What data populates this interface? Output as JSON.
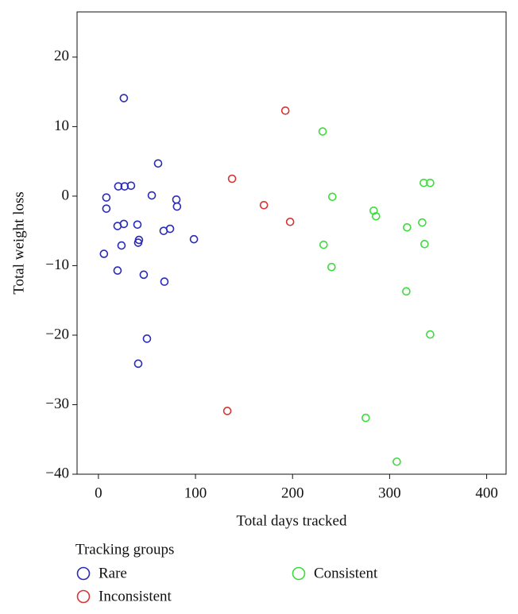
{
  "chart_data": {
    "type": "scatter",
    "x_label": "Total days tracked",
    "y_label": "Total weight loss",
    "legend_title": "Tracking groups",
    "xlim": [
      -22,
      420
    ],
    "ylim": [
      -40,
      26.5
    ],
    "xticks": [
      0,
      100,
      200,
      300,
      400
    ],
    "yticks": [
      {
        "value": -40,
        "label": "−40"
      },
      {
        "value": -30,
        "label": "−30"
      },
      {
        "value": -20,
        "label": "−20"
      },
      {
        "value": -10,
        "label": "−10"
      },
      0,
      10,
      20
    ],
    "series": [
      {
        "name": "Rare",
        "color": "#2b2bb8",
        "x": [
          26.2,
          61.5,
          20.5,
          27,
          33.6,
          55,
          8.2,
          8.2,
          80.3,
          81,
          19.7,
          26.2,
          40.2,
          73.8,
          67.2,
          41.8,
          41,
          98.4,
          23.8,
          5.7,
          19.7,
          46.7,
          68,
          50,
          41
        ],
        "values": [
          14.1,
          4.7,
          1.4,
          1.4,
          1.5,
          0.1,
          -0.2,
          -1.8,
          -0.5,
          -1.5,
          -4.3,
          -4,
          -4.1,
          -4.7,
          -5,
          -6.3,
          -6.7,
          -6.2,
          -7.1,
          -8.3,
          -10.7,
          -11.3,
          -12.3,
          -20.5,
          -24.1
        ]
      },
      {
        "name": "Inconsistent",
        "color": "#d93333",
        "x": [
          192.6,
          137.7,
          170.5,
          197.5,
          132.8
        ],
        "values": [
          12.3,
          2.5,
          -1.3,
          -3.7,
          -30.9
        ]
      },
      {
        "name": "Consistent",
        "color": "#3ddc3d",
        "x": [
          231,
          241,
          283.6,
          286,
          335.2,
          341.8,
          333.6,
          318,
          336,
          232,
          240.2,
          317.2,
          341.8,
          275.4,
          307.4
        ],
        "values": [
          9.3,
          -0.1,
          -2.1,
          -2.9,
          1.9,
          1.9,
          -3.8,
          -4.5,
          -6.9,
          -7,
          -10.2,
          -13.7,
          -19.9,
          -31.9,
          -38.2
        ]
      }
    ]
  }
}
